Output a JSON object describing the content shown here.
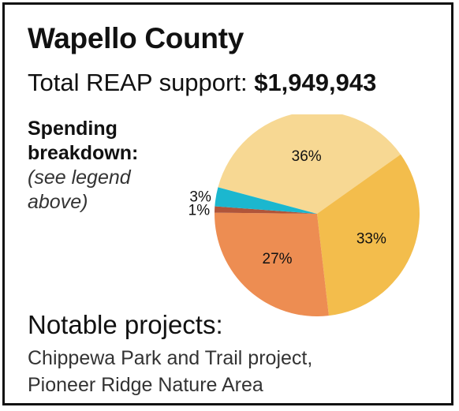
{
  "header": {
    "title": "Wapello County",
    "total_label": "Total REAP support:",
    "total_value": "$1,949,943"
  },
  "breakdown": {
    "heading_line1": "Spending",
    "heading_line2": "breakdown:",
    "note_line1": "(see legend",
    "note_line2": "above)"
  },
  "projects": {
    "heading": "Notable projects:",
    "lines": [
      "Chippewa Park and Trail project,",
      "Pioneer Ridge Nature Area"
    ]
  },
  "chart_data": {
    "type": "pie",
    "title": "",
    "slices": [
      {
        "label": "36%",
        "value": 36,
        "color": "#f7d893"
      },
      {
        "label": "33%",
        "value": 33,
        "color": "#f3bd4c"
      },
      {
        "label": "27%",
        "value": 27,
        "color": "#ed8d52"
      },
      {
        "label": "1%",
        "value": 1,
        "color": "#b0553a"
      },
      {
        "label": "3%",
        "value": 3,
        "color": "#1bb7cf"
      }
    ],
    "legend": "none"
  }
}
